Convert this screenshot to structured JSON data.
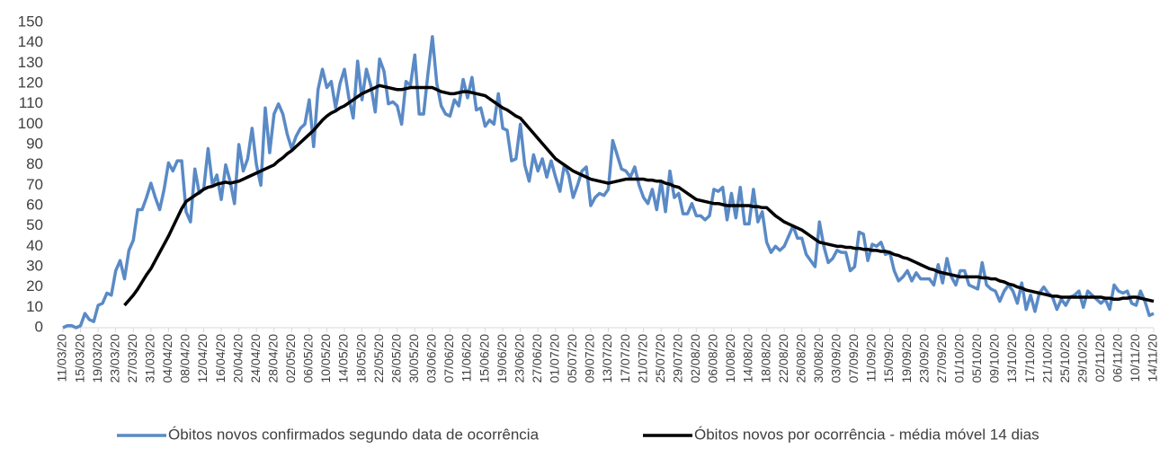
{
  "chart_data": {
    "type": "line",
    "categories": [
      "11/03/20",
      null,
      null,
      null,
      "15/03/20",
      null,
      null,
      null,
      "19/03/20",
      null,
      null,
      null,
      "23/03/20",
      null,
      null,
      null,
      "27/03/20",
      null,
      null,
      null,
      "31/03/20",
      null,
      null,
      null,
      "04/04/20",
      null,
      null,
      null,
      "08/04/20",
      null,
      null,
      null,
      "12/04/20",
      null,
      null,
      null,
      "16/04/20",
      null,
      null,
      null,
      "20/04/20",
      null,
      null,
      null,
      "24/04/20",
      null,
      null,
      null,
      "28/04/20",
      null,
      null,
      null,
      "02/05/20",
      null,
      null,
      null,
      "06/05/20",
      null,
      null,
      null,
      "10/05/20",
      null,
      null,
      null,
      "14/05/20",
      null,
      null,
      null,
      "18/05/20",
      null,
      null,
      null,
      "22/05/20",
      null,
      null,
      null,
      "26/05/20",
      null,
      null,
      null,
      "30/05/20",
      null,
      null,
      null,
      "03/06/20",
      null,
      null,
      null,
      "07/06/20",
      null,
      null,
      null,
      "11/06/20",
      null,
      null,
      null,
      "15/06/20",
      null,
      null,
      null,
      "19/06/20",
      null,
      null,
      null,
      "23/06/20",
      null,
      null,
      null,
      "27/06/20",
      null,
      null,
      null,
      "01/07/20",
      null,
      null,
      null,
      "05/07/20",
      null,
      null,
      null,
      "09/07/20",
      null,
      null,
      null,
      "13/07/20",
      null,
      null,
      null,
      "17/07/20",
      null,
      null,
      null,
      "21/07/20",
      null,
      null,
      null,
      "25/07/20",
      null,
      null,
      null,
      "29/07/20",
      null,
      null,
      null,
      "02/08/20",
      null,
      null,
      null,
      "06/08/20",
      null,
      null,
      null,
      "10/08/20",
      null,
      null,
      null,
      "14/08/20",
      null,
      null,
      null,
      "18/08/20",
      null,
      null,
      null,
      "22/08/20",
      null,
      null,
      null,
      "26/08/20",
      null,
      null,
      null,
      "30/08/20",
      null,
      null,
      null,
      "03/09/20",
      null,
      null,
      null,
      "07/09/20",
      null,
      null,
      null,
      "11/09/20",
      null,
      null,
      null,
      "15/09/20",
      null,
      null,
      null,
      "19/09/20",
      null,
      null,
      null,
      "23/09/20",
      null,
      null,
      null,
      "27/09/20",
      null,
      null,
      null,
      "01/10/20",
      null,
      null,
      null,
      "05/10/20",
      null,
      null,
      null,
      "09/10/20",
      null,
      null,
      null,
      "13/10/20",
      null,
      null,
      null,
      "17/10/20",
      null,
      null,
      null,
      "21/10/20",
      null,
      null,
      null,
      "25/10/20",
      null,
      null,
      null,
      "29/10/20",
      null,
      null,
      null,
      "02/11/20",
      null,
      null,
      null,
      "06/11/20",
      null,
      null,
      null,
      "10/11/20",
      null,
      null,
      null,
      "14/11/20"
    ],
    "series": [
      {
        "name": "Óbitos novos confirmados segundo data de ocorrência",
        "color": "#5a8ac6",
        "width": 3.5,
        "values": [
          0,
          1,
          1,
          0,
          1,
          7,
          4,
          3,
          11,
          12,
          17,
          16,
          28,
          33,
          24,
          38,
          43,
          58,
          58,
          64,
          71,
          64,
          58,
          68,
          81,
          77,
          82,
          82,
          57,
          52,
          78,
          66,
          68,
          88,
          70,
          75,
          63,
          80,
          72,
          61,
          90,
          77,
          83,
          98,
          80,
          70,
          108,
          86,
          105,
          110,
          105,
          95,
          88,
          94,
          98,
          100,
          112,
          89,
          117,
          127,
          118,
          121,
          108,
          120,
          127,
          113,
          103,
          131,
          112,
          127,
          119,
          106,
          132,
          126,
          110,
          111,
          109,
          100,
          121,
          119,
          134,
          105,
          105,
          125,
          143,
          120,
          109,
          105,
          104,
          112,
          109,
          122,
          113,
          123,
          107,
          108,
          99,
          102,
          100,
          115,
          98,
          97,
          82,
          83,
          100,
          80,
          72,
          85,
          77,
          83,
          74,
          82,
          74,
          67,
          80,
          75,
          64,
          70,
          77,
          79,
          60,
          64,
          66,
          65,
          68,
          92,
          85,
          78,
          77,
          74,
          79,
          70,
          64,
          61,
          68,
          58,
          72,
          57,
          77,
          64,
          66,
          56,
          56,
          61,
          55,
          55,
          53,
          55,
          68,
          67,
          69,
          53,
          66,
          54,
          69,
          51,
          51,
          68,
          52,
          57,
          42,
          37,
          40,
          38,
          40,
          45,
          50,
          44,
          44,
          36,
          33,
          30,
          52,
          40,
          32,
          34,
          38,
          37,
          37,
          28,
          30,
          47,
          46,
          33,
          41,
          40,
          42,
          36,
          37,
          28,
          23,
          25,
          28,
          23,
          27,
          24,
          24,
          24,
          21,
          31,
          22,
          34,
          25,
          21,
          28,
          28,
          21,
          20,
          19,
          32,
          21,
          19,
          18,
          13,
          18,
          21,
          18,
          12,
          22,
          9,
          16,
          8,
          17,
          20,
          17,
          15,
          9,
          14,
          11,
          15,
          16,
          18,
          10,
          18,
          16,
          14,
          12,
          14,
          9,
          21,
          18,
          17,
          18,
          12,
          11,
          18,
          13,
          6,
          7
        ]
      },
      {
        "name": "Óbitos novos por ocorrência - média móvel 14 dias",
        "color": "#000000",
        "width": 3.5,
        "values": [
          null,
          null,
          null,
          null,
          null,
          null,
          null,
          null,
          null,
          null,
          null,
          null,
          null,
          null,
          11,
          13.5,
          16,
          19,
          22.5,
          26,
          29,
          33,
          37,
          41,
          45,
          49.5,
          54,
          58.5,
          62,
          63.5,
          65,
          66.5,
          68,
          69,
          69.5,
          70.5,
          71,
          71.5,
          71,
          71.5,
          72,
          73,
          74,
          75,
          76,
          77,
          78,
          79,
          80,
          82,
          83.5,
          85.5,
          87,
          89,
          91,
          93,
          95,
          97,
          99.5,
          102,
          104,
          105.5,
          106.5,
          108,
          109,
          110.5,
          112,
          113.5,
          115,
          116,
          117,
          118,
          119,
          118.5,
          118,
          117.5,
          117,
          117,
          117.5,
          118,
          118,
          118,
          118,
          118,
          118,
          117,
          116,
          115.5,
          115,
          115,
          115.5,
          116,
          116,
          115.5,
          115,
          114.5,
          114,
          112.5,
          111,
          109.5,
          108,
          107,
          105.5,
          104,
          103,
          100.5,
          98,
          95.5,
          93,
          90.5,
          88,
          85.5,
          83,
          81.5,
          80,
          78.5,
          77,
          76,
          75,
          74,
          73,
          72.5,
          72,
          71.5,
          71,
          71.5,
          72,
          72.5,
          73,
          73,
          73,
          73,
          73,
          72.5,
          72.5,
          72,
          72,
          71,
          70.5,
          69.5,
          69,
          67.5,
          66,
          64.5,
          63,
          62.5,
          62,
          61.5,
          61,
          61,
          60.5,
          60,
          60,
          60,
          60,
          60,
          60,
          59.5,
          59.5,
          59,
          59,
          57,
          55,
          53.5,
          52,
          51,
          50,
          49,
          48,
          46.5,
          45,
          43.5,
          42,
          41.5,
          41,
          40.5,
          40,
          40,
          39.5,
          39.5,
          39,
          39,
          38.5,
          38.5,
          38,
          38,
          37.5,
          37.5,
          37,
          36,
          35.5,
          34.5,
          34,
          33,
          32,
          31,
          30,
          29,
          28.5,
          27.5,
          27,
          26.5,
          26,
          25.5,
          25,
          25,
          25,
          25,
          25,
          24.5,
          24.5,
          24,
          24,
          23,
          22.5,
          21.5,
          21,
          20,
          19.5,
          18.5,
          18,
          17.5,
          17,
          16.5,
          16,
          15.5,
          15.5,
          15,
          15,
          15,
          15,
          15,
          15,
          15,
          15,
          15,
          15,
          14.5,
          14.5,
          14,
          14,
          14.5,
          14.5,
          15,
          15,
          14.5,
          14,
          13.5,
          13
        ]
      }
    ],
    "ylim": [
      0,
      150
    ],
    "yticks": [
      0,
      10,
      20,
      30,
      40,
      50,
      60,
      70,
      80,
      90,
      100,
      110,
      120,
      130,
      140,
      150
    ],
    "grid": false,
    "legend": "bottom"
  }
}
